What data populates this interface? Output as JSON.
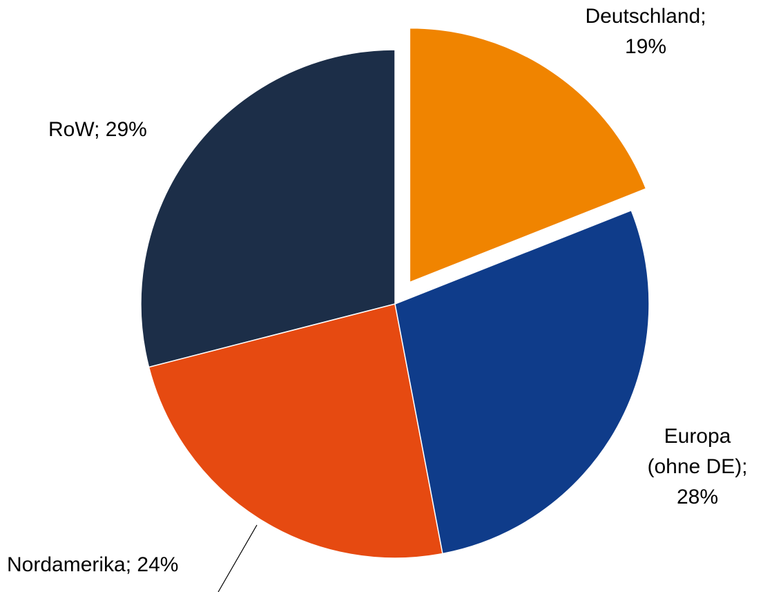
{
  "chart_data": {
    "type": "pie",
    "values": [
      19,
      28,
      24,
      29
    ],
    "value_labels": [
      "Deutschland; 19%",
      "Europa (ohne DE); 28%",
      "Nordamerika; 24%",
      "RoW; 29%"
    ],
    "colors": [
      "#f08400",
      "#0f3c8a",
      "#e64a11",
      "#1c2e48"
    ],
    "explode": [
      true,
      false,
      false,
      false
    ]
  }
}
